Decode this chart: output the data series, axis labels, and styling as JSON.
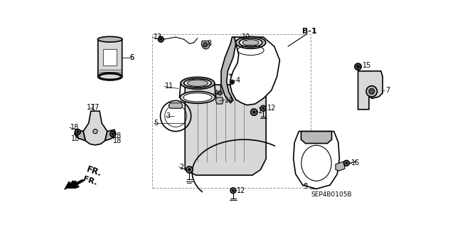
{
  "bg_color": "#ffffff",
  "diagram_code": "SEP4B0105B",
  "lw_main": 1.2,
  "lw_thin": 0.7,
  "gray_fill": "#d8d8d8",
  "gray_mid": "#b8b8b8",
  "gray_dark": "#888888"
}
